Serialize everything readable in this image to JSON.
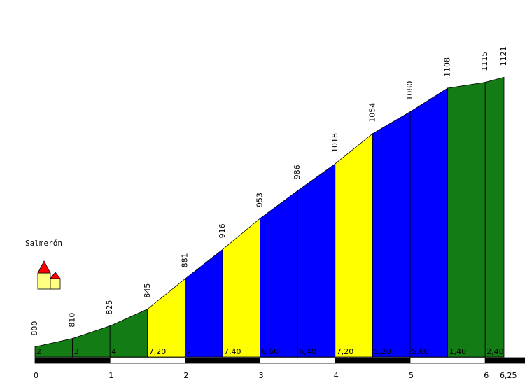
{
  "chart_data": {
    "type": "area",
    "title": "",
    "xlabel": "",
    "ylabel": "",
    "x_ticks": [
      "0",
      "1",
      "2",
      "3",
      "4",
      "5",
      "6",
      "6,25"
    ],
    "x_range_km": [
      0,
      6.25
    ],
    "points_km": [
      0,
      0.5,
      1,
      1.5,
      2,
      2.5,
      3,
      3.5,
      4,
      4.5,
      5,
      5.5,
      6,
      6.25
    ],
    "altitudes": [
      800,
      810,
      825,
      845,
      881,
      916,
      953,
      986,
      1018,
      1054,
      1080,
      1108,
      1115,
      1121
    ],
    "altitude_labels": [
      "800",
      "810",
      "825",
      "845",
      "881",
      "916",
      "953",
      "986",
      "1018",
      "1054",
      "1080",
      "1108",
      "1115",
      "1121"
    ],
    "segments": [
      {
        "grade": "2",
        "color": "green"
      },
      {
        "grade": "3",
        "color": "green"
      },
      {
        "grade": "4",
        "color": "green"
      },
      {
        "grade": "7,20",
        "color": "yellow"
      },
      {
        "grade": "7",
        "color": "blue"
      },
      {
        "grade": "7,40",
        "color": "yellow"
      },
      {
        "grade": "6,60",
        "color": "blue"
      },
      {
        "grade": "6,40",
        "color": "blue"
      },
      {
        "grade": "7,20",
        "color": "yellow"
      },
      {
        "grade": "5,20",
        "color": "blue"
      },
      {
        "grade": "5,60",
        "color": "blue"
      },
      {
        "grade": "1,40",
        "color": "green"
      },
      {
        "grade": "2,40",
        "color": "green"
      }
    ],
    "town": {
      "name": "Salmerón",
      "km": 0
    }
  },
  "colors": {
    "green": "#147c14",
    "yellow": "#ffff00",
    "blue": "#0000ff",
    "outline": "#000000",
    "house_wall": "#ffff80",
    "house_roof": "#ff0000"
  },
  "icons": {
    "town": "house-icon"
  }
}
